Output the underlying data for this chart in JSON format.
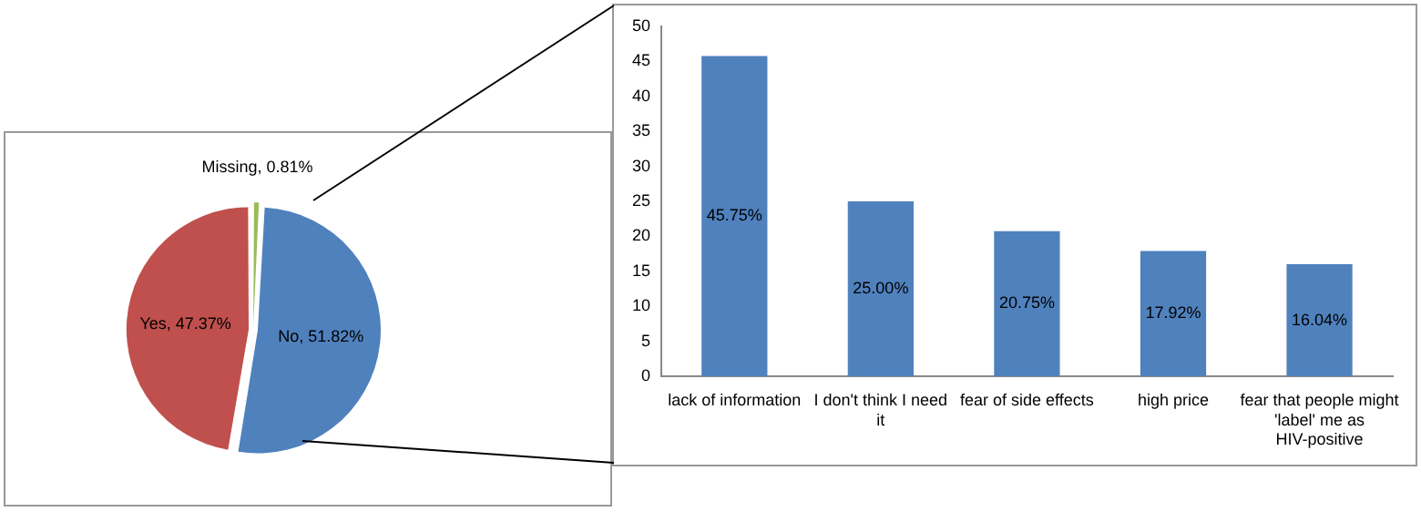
{
  "chart_data": [
    {
      "type": "pie",
      "categories": [
        "Missing",
        "No",
        "Yes"
      ],
      "values": [
        0.81,
        51.82,
        47.37
      ],
      "colors": [
        "#9bbb59",
        "#4f81bd",
        "#c0504d"
      ],
      "value_labels": [
        "0.81%",
        "51.82%",
        "47.37%"
      ],
      "legend": false
    },
    {
      "type": "bar",
      "categories": [
        "lack of information",
        "I don't think I need it",
        "fear of side effects",
        "high price",
        "fear that people might 'label' me as HIV-positive"
      ],
      "values": [
        45.75,
        25.0,
        20.75,
        17.92,
        16.04
      ],
      "color": "#4f81bd",
      "value_labels": [
        "45.75%",
        "25.00%",
        "20.75%",
        "17.92%",
        "16.04%"
      ],
      "ylim": [
        0,
        50
      ],
      "yticks": [
        0,
        5,
        10,
        15,
        20,
        25,
        30,
        35,
        40,
        45,
        50
      ],
      "grid": false,
      "legend": false
    }
  ]
}
